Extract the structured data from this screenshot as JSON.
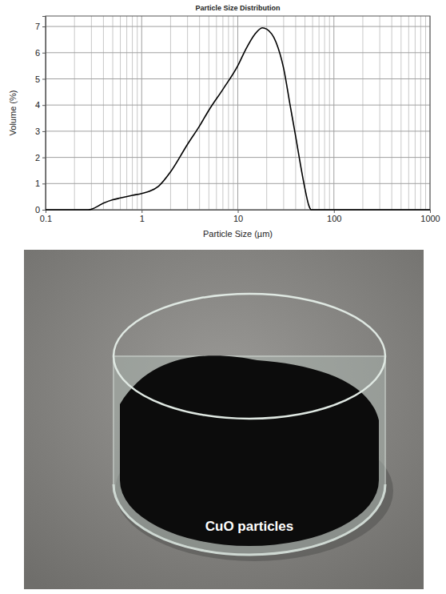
{
  "chart_data": {
    "type": "line",
    "title": "Particle Size Distribution",
    "x_label": "Particle Size (µm)",
    "y_label": "Volume (%)",
    "x": [
      0.1,
      0.28,
      0.3,
      0.4,
      0.5,
      0.6,
      0.8,
      1,
      1.2,
      1.5,
      2,
      3,
      4,
      5,
      7,
      10,
      12,
      15,
      18,
      20,
      25,
      30,
      35,
      40,
      45,
      50,
      55,
      58,
      1000
    ],
    "values": [
      0,
      0,
      0.02,
      0.25,
      0.38,
      0.45,
      0.55,
      0.62,
      0.7,
      0.9,
      1.45,
      2.5,
      3.2,
      3.8,
      4.6,
      5.5,
      6.1,
      6.7,
      6.95,
      6.9,
      6.4,
      5.4,
      4.0,
      2.8,
      1.7,
      0.8,
      0.15,
      0,
      0
    ],
    "color": "#000000",
    "log": "x",
    "grid": true,
    "xlim": [
      0.1,
      1000
    ],
    "xticks": [
      0.1,
      1,
      10,
      100,
      1000
    ],
    "ylim": [
      0,
      7.4
    ],
    "yticks": [
      0,
      1,
      2,
      3,
      4,
      5,
      6,
      7
    ]
  },
  "image": {
    "caption": "CuO particles"
  }
}
